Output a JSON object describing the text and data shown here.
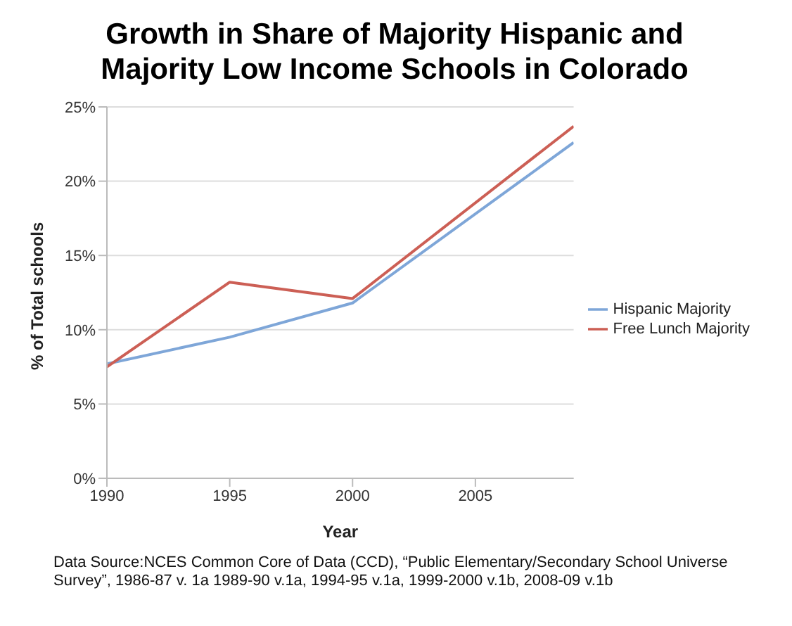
{
  "chart_data": {
    "type": "line",
    "title": "Growth in Share of Majority Hispanic and Majority Low Income Schools in Colorado",
    "xlabel": "Year",
    "ylabel": "% of Total schools",
    "x": [
      1990,
      1995,
      2000,
      2009
    ],
    "series": [
      {
        "name": "Hispanic Majority",
        "color": "#7ea6d8",
        "values": [
          7.7,
          9.5,
          11.8,
          22.6
        ]
      },
      {
        "name": "Free Lunch Majority",
        "color": "#cc5f55",
        "values": [
          7.5,
          13.2,
          12.1,
          23.7
        ]
      }
    ],
    "xlim": [
      1990,
      2009
    ],
    "xticks": [
      1990,
      1995,
      2000,
      2005
    ],
    "ylim": [
      0,
      25
    ],
    "yticks": [
      {
        "value": 0,
        "label": "0%"
      },
      {
        "value": 5,
        "label": "5%"
      },
      {
        "value": 10,
        "label": "10%"
      },
      {
        "value": 15,
        "label": "15%"
      },
      {
        "value": 20,
        "label": "20%"
      },
      {
        "value": 25,
        "label": "25%"
      }
    ],
    "grid": "y",
    "legend": "right",
    "marker": "none",
    "line_style": "solid",
    "annotations": [
      "Data Source:NCES Common Core of Data (CCD), “Public Elementary/Secondary School Universe Survey”, 1986-87 v. 1a 1989-90 v.1a, 1994-95 v.1a, 1999-2000 v.1b, 2008-09 v.1b"
    ]
  }
}
